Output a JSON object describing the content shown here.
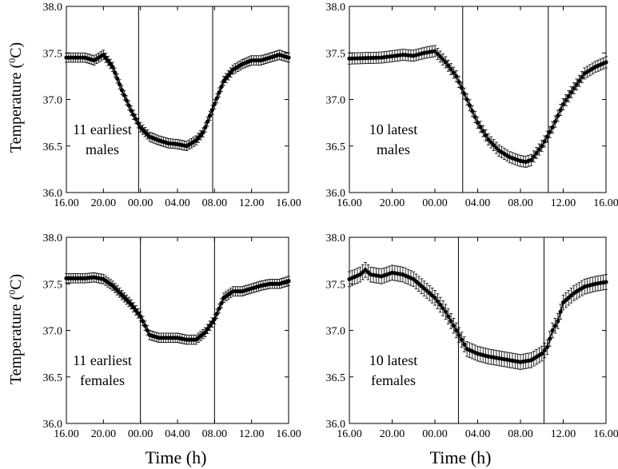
{
  "figure": {
    "ylabel_prefix": "Temperature (",
    "ylabel_sup": "0",
    "ylabel_suffix": "C)",
    "xlabel": "Time (h)"
  },
  "chart_data": [
    {
      "type": "line",
      "id": "early-males",
      "label_line1": "11  earliest",
      "label_line2": "males",
      "xlabel": "",
      "ylabel": "Temperature (0C)",
      "xlim": [
        16,
        40
      ],
      "ylim": [
        36.0,
        38.0
      ],
      "xtick_labels": [
        "16.00",
        "20.00",
        "00.00",
        "04.00",
        "08.00",
        "12.00",
        "16.00"
      ],
      "ytick_labels": [
        "36.0",
        "36.5",
        "37.0",
        "37.5",
        "38.0"
      ],
      "error_bar": 0.05,
      "vlines": [
        23.8,
        31.8
      ],
      "x": [
        16,
        18,
        19,
        20,
        21,
        22,
        23,
        24,
        25,
        26,
        27,
        28,
        29,
        30,
        30.8,
        32,
        33,
        34,
        35,
        36,
        37,
        38,
        39,
        40
      ],
      "y": [
        37.45,
        37.45,
        37.42,
        37.48,
        37.35,
        37.1,
        36.88,
        36.7,
        36.6,
        36.56,
        36.53,
        36.52,
        36.5,
        36.56,
        36.65,
        36.95,
        37.2,
        37.32,
        37.38,
        37.42,
        37.42,
        37.45,
        37.48,
        37.45
      ]
    },
    {
      "type": "line",
      "id": "late-males",
      "label_line1": "10  latest",
      "label_line2": "males",
      "xlabel": "",
      "ylabel": "",
      "xlim": [
        16,
        40
      ],
      "ylim": [
        36.0,
        38.0
      ],
      "xtick_labels": [
        "16.00",
        "20.00",
        "00.00",
        "04.00",
        "08.00",
        "12.00",
        "16.00"
      ],
      "ytick_labels": [
        "36.0",
        "36.5",
        "37.0",
        "37.5",
        "38.0"
      ],
      "error_bar": 0.06,
      "vlines": [
        26.6,
        34.6
      ],
      "x": [
        16,
        19,
        21,
        22,
        23,
        24,
        25,
        26,
        27,
        28,
        29,
        30,
        31,
        32,
        32.5,
        33,
        34,
        35,
        36,
        37,
        38,
        39,
        40
      ],
      "y": [
        37.44,
        37.45,
        37.48,
        37.47,
        37.5,
        37.52,
        37.4,
        37.25,
        37.0,
        36.75,
        36.57,
        36.45,
        36.38,
        36.34,
        36.33,
        36.35,
        36.5,
        36.7,
        36.95,
        37.12,
        37.28,
        37.35,
        37.4
      ]
    },
    {
      "type": "line",
      "id": "early-females",
      "label_line1": "11  earliest",
      "label_line2": "females",
      "xlabel": "",
      "ylabel": "Temperature (0C)",
      "xlim": [
        16,
        40
      ],
      "ylim": [
        36.0,
        38.0
      ],
      "xtick_labels": [
        "16.00",
        "20.00",
        "00.00",
        "04.00",
        "08.00",
        "12.00",
        "16.00"
      ],
      "ytick_labels": [
        "36.0",
        "36.5",
        "37.0",
        "37.5",
        "38.0"
      ],
      "error_bar": 0.05,
      "vlines": [
        24.0,
        32.0
      ],
      "x": [
        16,
        18,
        19,
        20,
        21,
        22,
        23,
        24,
        24.5,
        25,
        26,
        27,
        28,
        29,
        30,
        31,
        32,
        33,
        34,
        35,
        36,
        37,
        38,
        39,
        40
      ],
      "y": [
        37.56,
        37.56,
        37.57,
        37.55,
        37.48,
        37.38,
        37.28,
        37.15,
        37.05,
        36.95,
        36.92,
        36.92,
        36.92,
        36.9,
        36.9,
        36.98,
        37.12,
        37.35,
        37.42,
        37.42,
        37.45,
        37.48,
        37.5,
        37.5,
        37.53
      ]
    },
    {
      "type": "line",
      "id": "late-females",
      "label_line1": "10  latest",
      "label_line2": "females",
      "xlabel": "",
      "ylabel": "",
      "xlim": [
        16,
        40
      ],
      "ylim": [
        36.0,
        38.0
      ],
      "xtick_labels": [
        "16.00",
        "20.00",
        "00.00",
        "04.00",
        "08.00",
        "12.00",
        "16.00"
      ],
      "ytick_labels": [
        "36.0",
        "36.5",
        "37.0",
        "37.5",
        "38.0"
      ],
      "error_bar": 0.08,
      "vlines": [
        26.2,
        34.2
      ],
      "x": [
        16,
        17,
        17.5,
        18,
        19,
        20,
        21,
        22,
        23,
        24,
        25,
        26,
        26.5,
        27,
        28,
        29,
        30,
        31,
        32,
        33,
        34,
        34.5,
        35,
        35.5,
        36,
        37,
        38,
        39,
        40
      ],
      "y": [
        37.55,
        37.6,
        37.65,
        37.6,
        37.58,
        37.62,
        37.6,
        37.55,
        37.45,
        37.35,
        37.2,
        37.0,
        36.9,
        36.8,
        36.75,
        36.72,
        36.7,
        36.68,
        36.66,
        36.68,
        36.75,
        36.82,
        37.0,
        37.1,
        37.3,
        37.4,
        37.47,
        37.5,
        37.52
      ]
    }
  ]
}
